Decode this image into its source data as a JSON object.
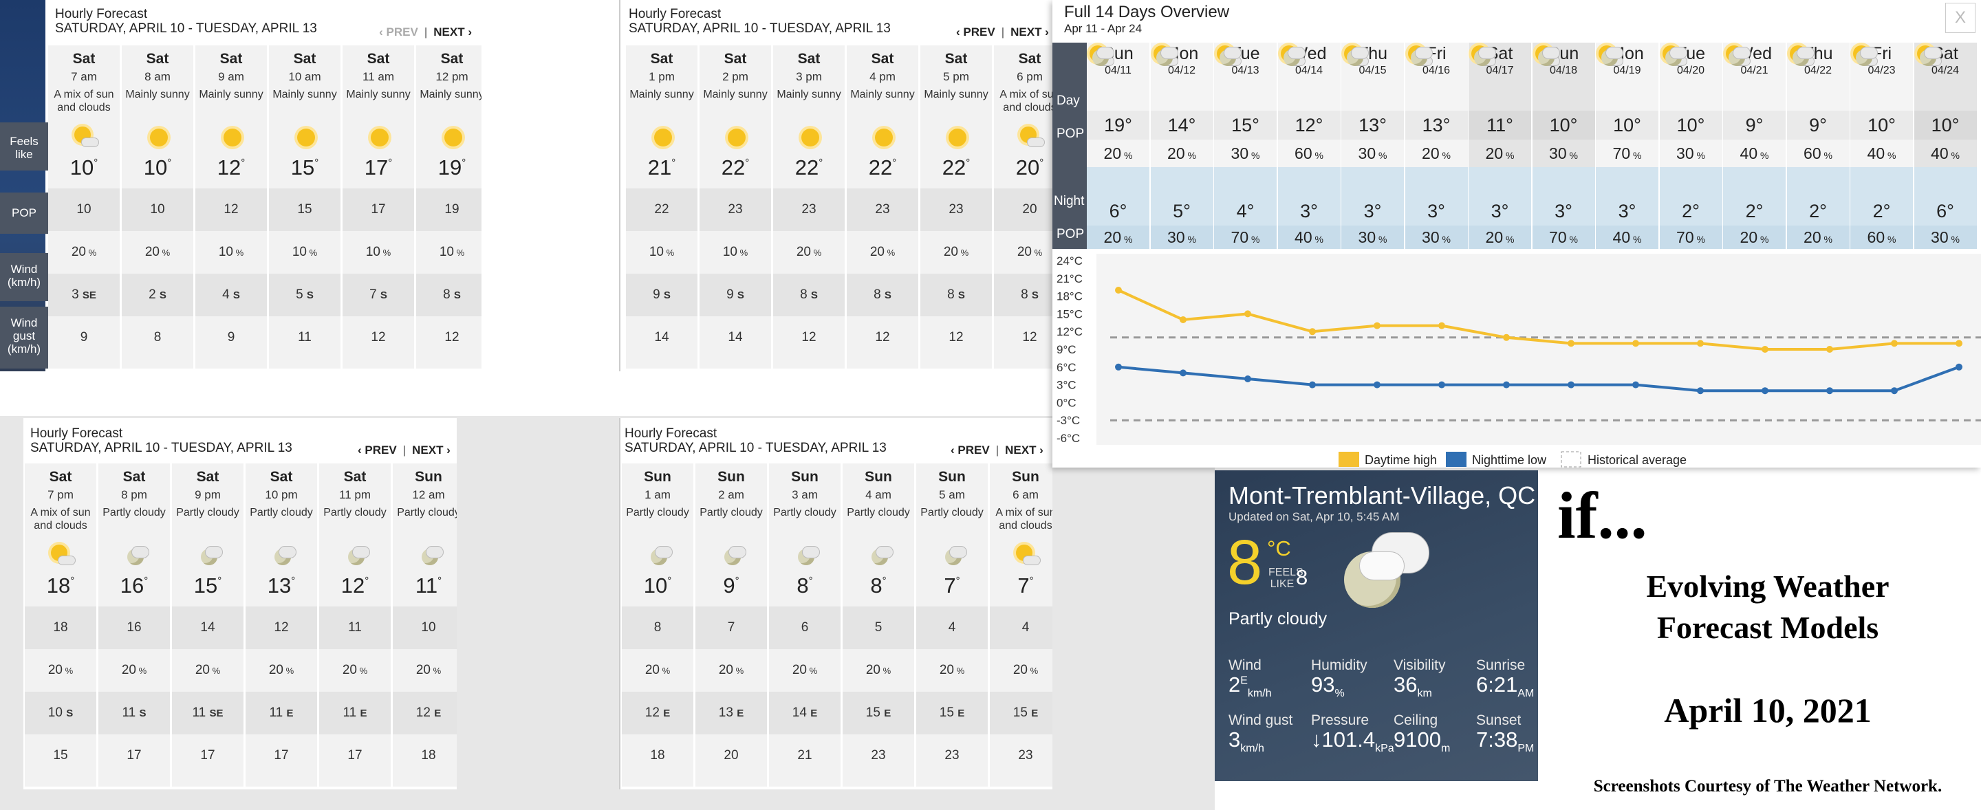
{
  "hourly_title": "Hourly Forecast",
  "hourly_range": "SATURDAY, APRIL 10 - TUESDAY, APRIL 13",
  "prev_label": "‹ PREV",
  "next_label": "NEXT ›",
  "row_labels": {
    "feels": "Feels like",
    "pop": "POP",
    "wind": "Wind (km/h)",
    "gust": "Wind gust (km/h)"
  },
  "panel1": [
    {
      "day": "Sat",
      "time": "7 am",
      "cond": "A mix of sun and clouds",
      "icon": "sun-cloud-icon",
      "temp": "10",
      "feels": "10",
      "pop": "20",
      "wind": "3",
      "dir": "SE",
      "gust": "9"
    },
    {
      "day": "Sat",
      "time": "8 am",
      "cond": "Mainly sunny",
      "icon": "sun-icon",
      "temp": "10",
      "feels": "10",
      "pop": "20",
      "wind": "2",
      "dir": "S",
      "gust": "8"
    },
    {
      "day": "Sat",
      "time": "9 am",
      "cond": "Mainly sunny",
      "icon": "sun-icon",
      "temp": "12",
      "feels": "12",
      "pop": "10",
      "wind": "4",
      "dir": "S",
      "gust": "9"
    },
    {
      "day": "Sat",
      "time": "10 am",
      "cond": "Mainly sunny",
      "icon": "sun-icon",
      "temp": "15",
      "feels": "15",
      "pop": "10",
      "wind": "5",
      "dir": "S",
      "gust": "11"
    },
    {
      "day": "Sat",
      "time": "11 am",
      "cond": "Mainly sunny",
      "icon": "sun-icon",
      "temp": "17",
      "feels": "17",
      "pop": "10",
      "wind": "7",
      "dir": "S",
      "gust": "12"
    },
    {
      "day": "Sat",
      "time": "12 pm",
      "cond": "Mainly sunny",
      "icon": "sun-icon",
      "temp": "19",
      "feels": "19",
      "pop": "10",
      "wind": "8",
      "dir": "S",
      "gust": "12"
    }
  ],
  "panel2": [
    {
      "day": "Sat",
      "time": "1 pm",
      "cond": "Mainly sunny",
      "icon": "sun-icon",
      "temp": "21",
      "feels": "22",
      "pop": "10",
      "wind": "9",
      "dir": "S",
      "gust": "14"
    },
    {
      "day": "Sat",
      "time": "2 pm",
      "cond": "Mainly sunny",
      "icon": "sun-icon",
      "temp": "22",
      "feels": "23",
      "pop": "10",
      "wind": "9",
      "dir": "S",
      "gust": "14"
    },
    {
      "day": "Sat",
      "time": "3 pm",
      "cond": "Mainly sunny",
      "icon": "sun-icon",
      "temp": "22",
      "feels": "23",
      "pop": "20",
      "wind": "8",
      "dir": "S",
      "gust": "12"
    },
    {
      "day": "Sat",
      "time": "4 pm",
      "cond": "Mainly sunny",
      "icon": "sun-icon",
      "temp": "22",
      "feels": "23",
      "pop": "20",
      "wind": "8",
      "dir": "S",
      "gust": "12"
    },
    {
      "day": "Sat",
      "time": "5 pm",
      "cond": "Mainly sunny",
      "icon": "sun-icon",
      "temp": "22",
      "feels": "23",
      "pop": "20",
      "wind": "8",
      "dir": "S",
      "gust": "12"
    },
    {
      "day": "Sat",
      "time": "6 pm",
      "cond": "A mix of sun and clouds",
      "icon": "sun-cloud-icon",
      "temp": "20",
      "feels": "20",
      "pop": "20",
      "wind": "8",
      "dir": "S",
      "gust": "12"
    }
  ],
  "panel3": [
    {
      "day": "Sat",
      "time": "7 pm",
      "cond": "A mix of sun and clouds",
      "icon": "sun-cloud-icon",
      "temp": "18",
      "feels": "18",
      "pop": "20",
      "wind": "10",
      "dir": "S",
      "gust": "15"
    },
    {
      "day": "Sat",
      "time": "8 pm",
      "cond": "Partly cloudy",
      "icon": "moon-cloud-icon",
      "temp": "16",
      "feels": "16",
      "pop": "20",
      "wind": "11",
      "dir": "S",
      "gust": "17"
    },
    {
      "day": "Sat",
      "time": "9 pm",
      "cond": "Partly cloudy",
      "icon": "moon-cloud-icon",
      "temp": "15",
      "feels": "14",
      "pop": "20",
      "wind": "11",
      "dir": "SE",
      "gust": "17"
    },
    {
      "day": "Sat",
      "time": "10 pm",
      "cond": "Partly cloudy",
      "icon": "moon-cloud-icon",
      "temp": "13",
      "feels": "12",
      "pop": "20",
      "wind": "11",
      "dir": "E",
      "gust": "17"
    },
    {
      "day": "Sat",
      "time": "11 pm",
      "cond": "Partly cloudy",
      "icon": "moon-cloud-icon",
      "temp": "12",
      "feels": "11",
      "pop": "20",
      "wind": "11",
      "dir": "E",
      "gust": "17"
    },
    {
      "day": "Sun",
      "time": "12 am",
      "cond": "Partly cloudy",
      "icon": "moon-cloud-icon",
      "temp": "11",
      "feels": "10",
      "pop": "20",
      "wind": "12",
      "dir": "E",
      "gust": "18"
    }
  ],
  "panel4": [
    {
      "day": "Sun",
      "time": "1 am",
      "cond": "Partly cloudy",
      "icon": "moon-cloud-icon",
      "temp": "10",
      "feels": "8",
      "pop": "20",
      "wind": "12",
      "dir": "E",
      "gust": "18"
    },
    {
      "day": "Sun",
      "time": "2 am",
      "cond": "Partly cloudy",
      "icon": "moon-cloud-icon",
      "temp": "9",
      "feels": "7",
      "pop": "20",
      "wind": "13",
      "dir": "E",
      "gust": "20"
    },
    {
      "day": "Sun",
      "time": "3 am",
      "cond": "Partly cloudy",
      "icon": "moon-cloud-icon",
      "temp": "8",
      "feels": "6",
      "pop": "20",
      "wind": "14",
      "dir": "E",
      "gust": "21"
    },
    {
      "day": "Sun",
      "time": "4 am",
      "cond": "Partly cloudy",
      "icon": "moon-cloud-icon",
      "temp": "8",
      "feels": "5",
      "pop": "20",
      "wind": "15",
      "dir": "E",
      "gust": "23"
    },
    {
      "day": "Sun",
      "time": "5 am",
      "cond": "Partly cloudy",
      "icon": "moon-cloud-icon",
      "temp": "7",
      "feels": "4",
      "pop": "20",
      "wind": "15",
      "dir": "E",
      "gust": "23"
    },
    {
      "day": "Sun",
      "time": "6 am",
      "cond": "A mix of sun and clouds",
      "icon": "sun-cloud-icon",
      "temp": "7",
      "feels": "4",
      "pop": "20",
      "wind": "15",
      "dir": "E",
      "gust": "23"
    }
  ],
  "overview": {
    "title": "Full 14 Days Overview",
    "range": "Apr 11 - Apr 24",
    "close": "X",
    "labels": {
      "day": "Day",
      "pop": "POP",
      "night": "Night"
    },
    "days": [
      {
        "dn": "Sun",
        "dd": "04/11",
        "hi": "19",
        "pop": "20",
        "lo": "6",
        "npop": "20"
      },
      {
        "dn": "Mon",
        "dd": "04/12",
        "hi": "14",
        "pop": "20",
        "lo": "5",
        "npop": "30"
      },
      {
        "dn": "Tue",
        "dd": "04/13",
        "hi": "15",
        "pop": "30",
        "lo": "4",
        "npop": "70"
      },
      {
        "dn": "Wed",
        "dd": "04/14",
        "hi": "12",
        "pop": "60",
        "lo": "3",
        "npop": "40"
      },
      {
        "dn": "Thu",
        "dd": "04/15",
        "hi": "13",
        "pop": "30",
        "lo": "3",
        "npop": "30"
      },
      {
        "dn": "Fri",
        "dd": "04/16",
        "hi": "13",
        "pop": "20",
        "lo": "3",
        "npop": "30"
      },
      {
        "dn": "Sat",
        "dd": "04/17",
        "hi": "11",
        "pop": "20",
        "lo": "3",
        "npop": "20"
      },
      {
        "dn": "Sun",
        "dd": "04/18",
        "hi": "10",
        "pop": "30",
        "lo": "3",
        "npop": "70"
      },
      {
        "dn": "Mon",
        "dd": "04/19",
        "hi": "10",
        "pop": "70",
        "lo": "3",
        "npop": "40"
      },
      {
        "dn": "Tue",
        "dd": "04/20",
        "hi": "10",
        "pop": "30",
        "lo": "2",
        "npop": "70"
      },
      {
        "dn": "Wed",
        "dd": "04/21",
        "hi": "9",
        "pop": "40",
        "lo": "2",
        "npop": "20"
      },
      {
        "dn": "Thu",
        "dd": "04/22",
        "hi": "9",
        "pop": "60",
        "lo": "2",
        "npop": "20"
      },
      {
        "dn": "Fri",
        "dd": "04/23",
        "hi": "10",
        "pop": "40",
        "lo": "2",
        "npop": "60"
      },
      {
        "dn": "Sat",
        "dd": "04/24",
        "hi": "10",
        "pop": "40",
        "lo": "6",
        "npop": "30"
      }
    ]
  },
  "chart_data": {
    "type": "line",
    "x": [
      "04/11",
      "04/12",
      "04/13",
      "04/14",
      "04/15",
      "04/16",
      "04/17",
      "04/18",
      "04/19",
      "04/20",
      "04/21",
      "04/22",
      "04/23",
      "04/24"
    ],
    "series": [
      {
        "name": "Daytime high",
        "color": "#f5c030",
        "values": [
          19,
          14,
          15,
          12,
          13,
          13,
          11,
          10,
          10,
          10,
          9,
          9,
          10,
          10
        ]
      },
      {
        "name": "Nighttime low",
        "color": "#2f6fb3",
        "values": [
          6,
          5,
          4,
          3,
          3,
          3,
          3,
          3,
          3,
          2,
          2,
          2,
          2,
          6
        ]
      },
      {
        "name": "Historical average",
        "color": "#999999",
        "values": [
          11,
          11,
          11,
          11,
          11,
          11,
          11,
          11,
          11,
          11,
          11,
          11,
          11,
          11
        ],
        "low": [
          -3,
          -3,
          -3,
          -3,
          -3,
          -3,
          -3,
          -3,
          -3,
          -3,
          -3,
          -3,
          -3,
          -3
        ]
      }
    ],
    "yticks": [
      "24°C",
      "21°C",
      "18°C",
      "15°C",
      "12°C",
      "9°C",
      "6°C",
      "3°C",
      "0°C",
      "-3°C",
      "-6°C"
    ],
    "ylim": [
      -6,
      24
    ],
    "legend": "bottom"
  },
  "current": {
    "location": "Mont-Tremblant-Village, QC",
    "updated": "Updated on Sat, Apr 10, 5:45 AM",
    "temp": "8",
    "unit": "°C",
    "feels_label": "FEELS LIKE",
    "feels": "8",
    "condition": "Partly cloudy",
    "wind_label": "Wind",
    "wind": "2",
    "wind_dir": "E",
    "wind_unit": "km/h",
    "hum_label": "Humidity",
    "hum": "93",
    "hum_unit": "%",
    "vis_label": "Visibility",
    "vis": "36",
    "vis_unit": "km",
    "sunrise_label": "Sunrise",
    "sunrise": "6:21",
    "sunrise_unit": "AM",
    "gust_label": "Wind gust",
    "gust": "3",
    "gust_unit": "km/h",
    "press_label": "Pressure",
    "press": "↓101.4",
    "press_unit": "kPa",
    "ceil_label": "Ceiling",
    "ceil": "9100",
    "ceil_unit": "m",
    "sunset_label": "Sunset",
    "sunset": "7:38",
    "sunset_unit": "PM"
  },
  "caption": {
    "title": "if...",
    "line1": "Evolving Weather",
    "line2": "Forecast Models",
    "date": "April 10, 2021",
    "credit": "Screenshots Courtesy of The Weather Network."
  }
}
